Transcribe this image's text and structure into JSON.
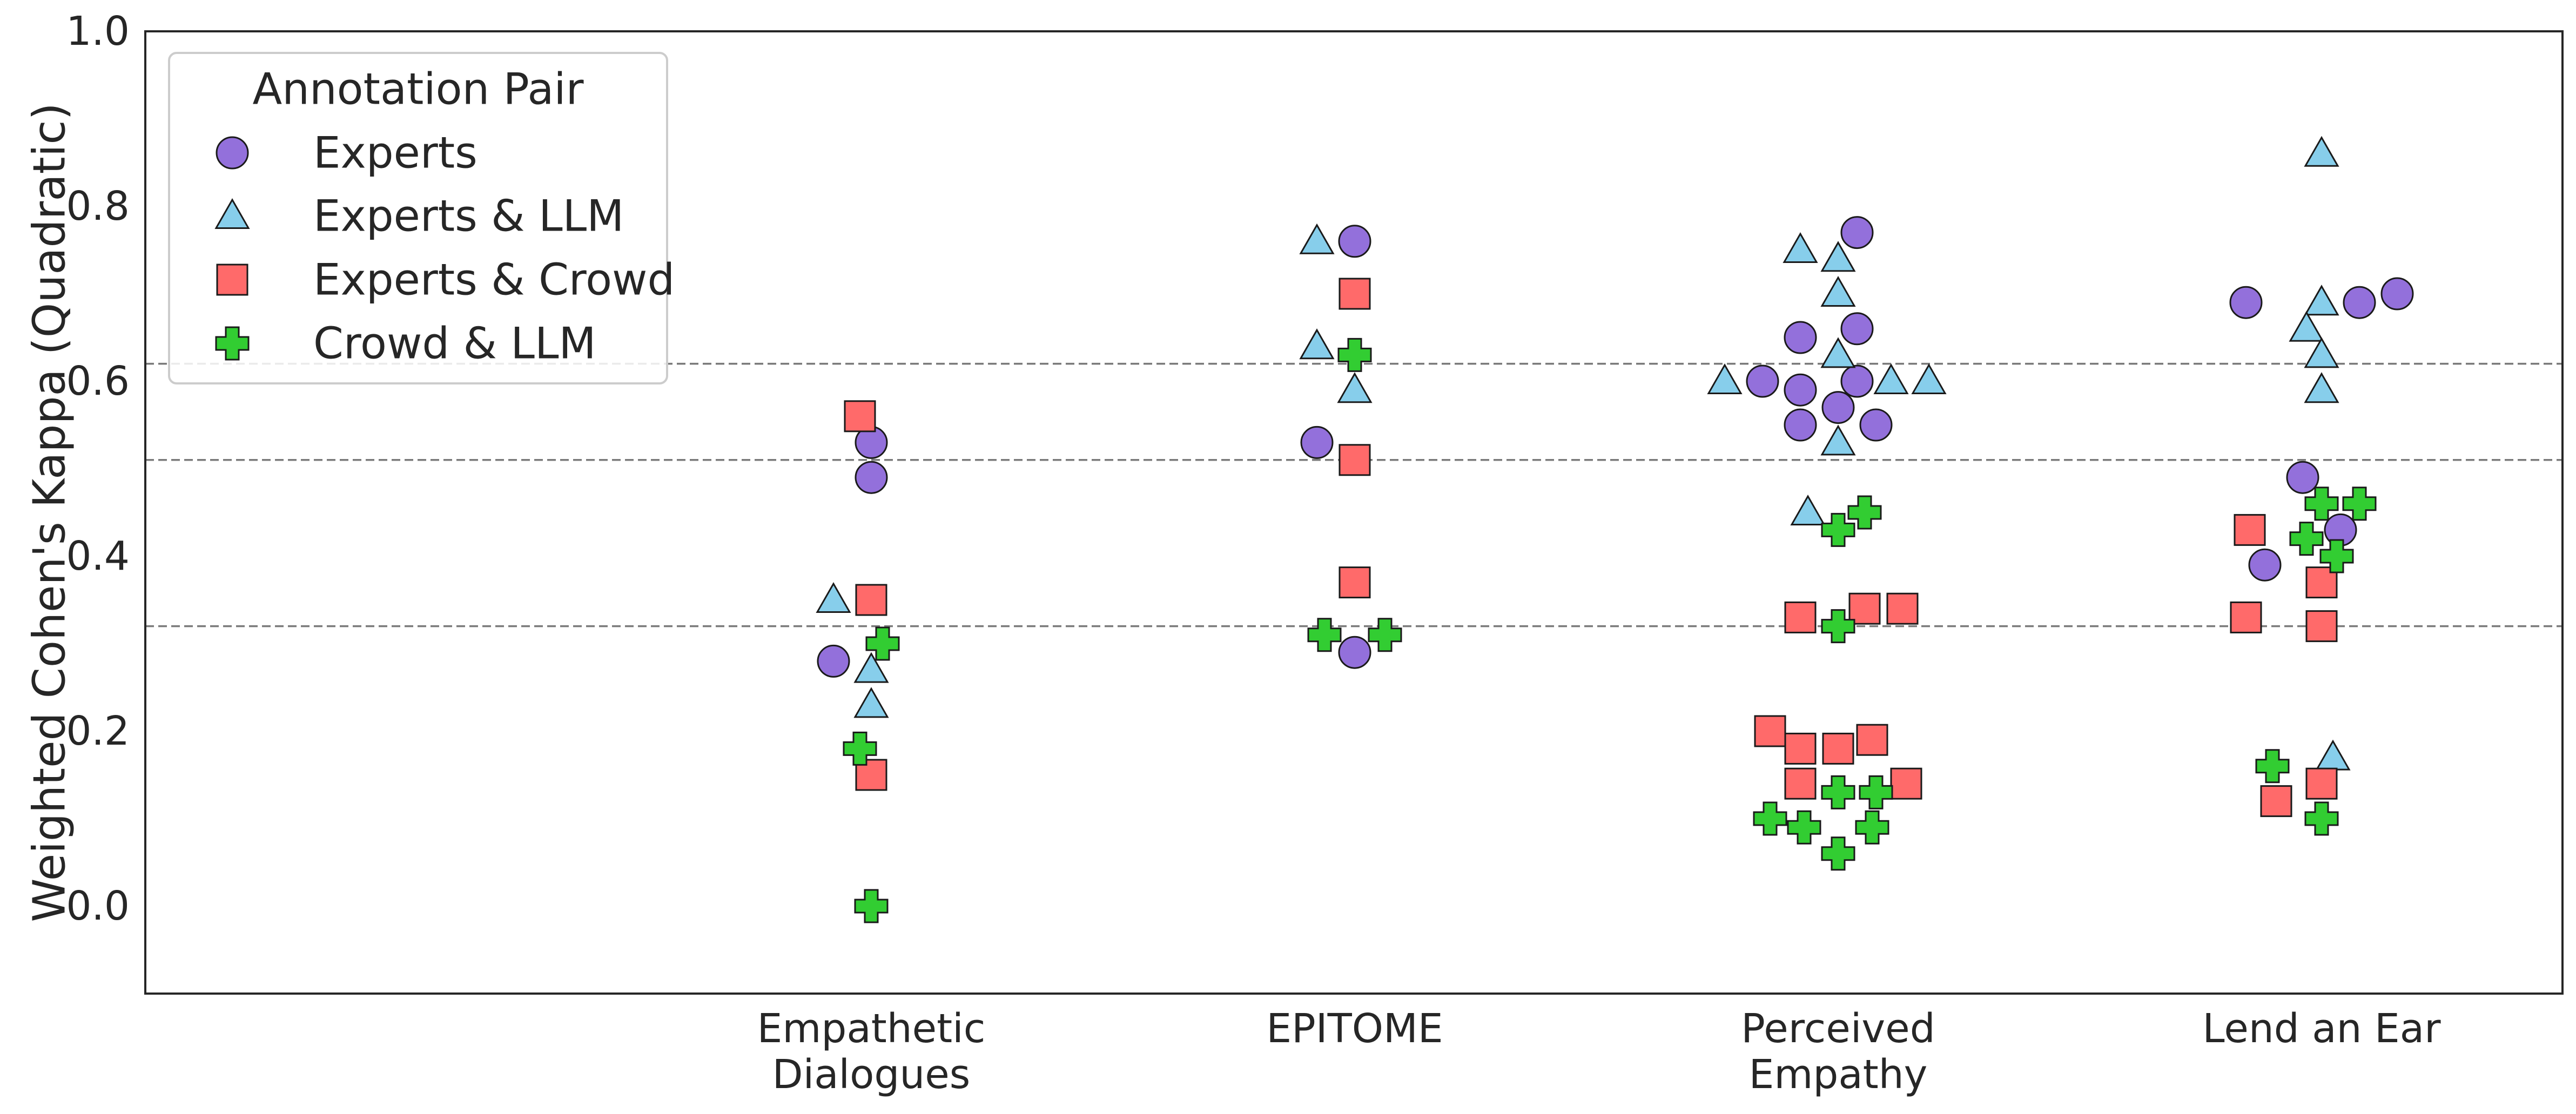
{
  "chart_data": {
    "type": "scatter",
    "title": "",
    "xlabel": "",
    "ylabel": "Weighted Cohen's Kappa (Quadratic)",
    "ylim": [
      -0.1,
      1.0
    ],
    "yticks": [
      "0.0",
      "0.2",
      "0.4",
      "0.6",
      "0.8",
      "1.0"
    ],
    "grid": false,
    "legend_position": "top-left",
    "legend_title": "Annotation Pair",
    "reference_lines": [
      0.32,
      0.51,
      0.62
    ],
    "categories": [
      {
        "line1": "Empathetic",
        "line2": "Dialogues"
      },
      {
        "line1": "EPITOME",
        "line2": ""
      },
      {
        "line1": "Perceived",
        "line2": "Empathy"
      },
      {
        "line1": "Lend an Ear",
        "line2": ""
      }
    ],
    "series": [
      {
        "name": "Experts",
        "marker": "circle",
        "color": "#9370DB",
        "points": [
          {
            "cat": 0,
            "dx": 0,
            "y": 0.53
          },
          {
            "cat": 0,
            "dx": 0,
            "y": 0.49
          },
          {
            "cat": 0,
            "dx": -1,
            "y": 0.28
          },
          {
            "cat": 1,
            "dx": 0,
            "y": 0.76
          },
          {
            "cat": 1,
            "dx": -1,
            "y": 0.53
          },
          {
            "cat": 1,
            "dx": 0,
            "y": 0.29
          },
          {
            "cat": 2,
            "dx": 0.5,
            "y": 0.77
          },
          {
            "cat": 2,
            "dx": -1,
            "y": 0.65
          },
          {
            "cat": 2,
            "dx": 0.5,
            "y": 0.66
          },
          {
            "cat": 2,
            "dx": -1,
            "y": 0.59
          },
          {
            "cat": 2,
            "dx": -2,
            "y": 0.6
          },
          {
            "cat": 2,
            "dx": 0.5,
            "y": 0.6
          },
          {
            "cat": 2,
            "dx": 0,
            "y": 0.57
          },
          {
            "cat": 2,
            "dx": -1,
            "y": 0.55
          },
          {
            "cat": 2,
            "dx": 1,
            "y": 0.55
          },
          {
            "cat": 3,
            "dx": -2,
            "y": 0.69
          },
          {
            "cat": 3,
            "dx": 1,
            "y": 0.69
          },
          {
            "cat": 3,
            "dx": 2,
            "y": 0.7
          },
          {
            "cat": 3,
            "dx": -0.5,
            "y": 0.49
          },
          {
            "cat": 3,
            "dx": 0.5,
            "y": 0.43
          },
          {
            "cat": 3,
            "dx": -1.5,
            "y": 0.39
          }
        ]
      },
      {
        "name": "Experts & LLM",
        "marker": "triangle",
        "color": "#87CEEB",
        "points": [
          {
            "cat": 0,
            "dx": -1,
            "y": 0.35
          },
          {
            "cat": 0,
            "dx": 0,
            "y": 0.27
          },
          {
            "cat": 0,
            "dx": 0,
            "y": 0.23
          },
          {
            "cat": 1,
            "dx": -1,
            "y": 0.76
          },
          {
            "cat": 1,
            "dx": -1,
            "y": 0.64
          },
          {
            "cat": 1,
            "dx": 0,
            "y": 0.59
          },
          {
            "cat": 2,
            "dx": -1,
            "y": 0.75
          },
          {
            "cat": 2,
            "dx": 0,
            "y": 0.74
          },
          {
            "cat": 2,
            "dx": 0,
            "y": 0.7
          },
          {
            "cat": 2,
            "dx": 0,
            "y": 0.63
          },
          {
            "cat": 2,
            "dx": -3,
            "y": 0.6
          },
          {
            "cat": 2,
            "dx": 1.4,
            "y": 0.6
          },
          {
            "cat": 2,
            "dx": 2.4,
            "y": 0.6
          },
          {
            "cat": 2,
            "dx": 0,
            "y": 0.53
          },
          {
            "cat": 2,
            "dx": -0.8,
            "y": 0.45
          },
          {
            "cat": 3,
            "dx": 0,
            "y": 0.86
          },
          {
            "cat": 3,
            "dx": 0,
            "y": 0.69
          },
          {
            "cat": 3,
            "dx": -0.4,
            "y": 0.66
          },
          {
            "cat": 3,
            "dx": 0,
            "y": 0.63
          },
          {
            "cat": 3,
            "dx": 0,
            "y": 0.59
          },
          {
            "cat": 3,
            "dx": 0.3,
            "y": 0.17
          }
        ]
      },
      {
        "name": "Experts & Crowd",
        "marker": "square",
        "color": "#FF6A6A",
        "points": [
          {
            "cat": 0,
            "dx": -0.3,
            "y": 0.56
          },
          {
            "cat": 0,
            "dx": 0,
            "y": 0.35
          },
          {
            "cat": 0,
            "dx": 0,
            "y": 0.15
          },
          {
            "cat": 1,
            "dx": 0,
            "y": 0.7
          },
          {
            "cat": 1,
            "dx": 0,
            "y": 0.51
          },
          {
            "cat": 1,
            "dx": 0,
            "y": 0.37
          },
          {
            "cat": 2,
            "dx": -1,
            "y": 0.33
          },
          {
            "cat": 2,
            "dx": 0.7,
            "y": 0.34
          },
          {
            "cat": 2,
            "dx": 1.7,
            "y": 0.34
          },
          {
            "cat": 2,
            "dx": -1.8,
            "y": 0.2
          },
          {
            "cat": 2,
            "dx": -1,
            "y": 0.18
          },
          {
            "cat": 2,
            "dx": 0,
            "y": 0.18
          },
          {
            "cat": 2,
            "dx": 0.9,
            "y": 0.19
          },
          {
            "cat": 2,
            "dx": -1,
            "y": 0.14
          },
          {
            "cat": 2,
            "dx": 1.8,
            "y": 0.14
          },
          {
            "cat": 3,
            "dx": -1.9,
            "y": 0.43
          },
          {
            "cat": 3,
            "dx": 0,
            "y": 0.37
          },
          {
            "cat": 3,
            "dx": -2,
            "y": 0.33
          },
          {
            "cat": 3,
            "dx": 0,
            "y": 0.32
          },
          {
            "cat": 3,
            "dx": 0,
            "y": 0.14
          },
          {
            "cat": 3,
            "dx": -1.2,
            "y": 0.12
          }
        ]
      },
      {
        "name": "Crowd & LLM",
        "marker": "plus",
        "color": "#32CD32",
        "points": [
          {
            "cat": 0,
            "dx": 0.3,
            "y": 0.3
          },
          {
            "cat": 0,
            "dx": -0.3,
            "y": 0.18
          },
          {
            "cat": 0,
            "dx": 0,
            "y": 0.0
          },
          {
            "cat": 1,
            "dx": 0,
            "y": 0.63
          },
          {
            "cat": 1,
            "dx": -0.8,
            "y": 0.31
          },
          {
            "cat": 1,
            "dx": 0.8,
            "y": 0.31
          },
          {
            "cat": 2,
            "dx": 0.7,
            "y": 0.45
          },
          {
            "cat": 2,
            "dx": 0,
            "y": 0.43
          },
          {
            "cat": 2,
            "dx": 0,
            "y": 0.32
          },
          {
            "cat": 2,
            "dx": 0,
            "y": 0.13
          },
          {
            "cat": 2,
            "dx": 1,
            "y": 0.13
          },
          {
            "cat": 2,
            "dx": -1.8,
            "y": 0.1
          },
          {
            "cat": 2,
            "dx": -0.9,
            "y": 0.09
          },
          {
            "cat": 2,
            "dx": 0.9,
            "y": 0.09
          },
          {
            "cat": 2,
            "dx": 0,
            "y": 0.06
          },
          {
            "cat": 3,
            "dx": 0,
            "y": 0.46
          },
          {
            "cat": 3,
            "dx": 1,
            "y": 0.46
          },
          {
            "cat": 3,
            "dx": -0.4,
            "y": 0.42
          },
          {
            "cat": 3,
            "dx": 0.4,
            "y": 0.4
          },
          {
            "cat": 3,
            "dx": -1.3,
            "y": 0.16
          },
          {
            "cat": 3,
            "dx": 0,
            "y": 0.1
          }
        ]
      }
    ]
  }
}
